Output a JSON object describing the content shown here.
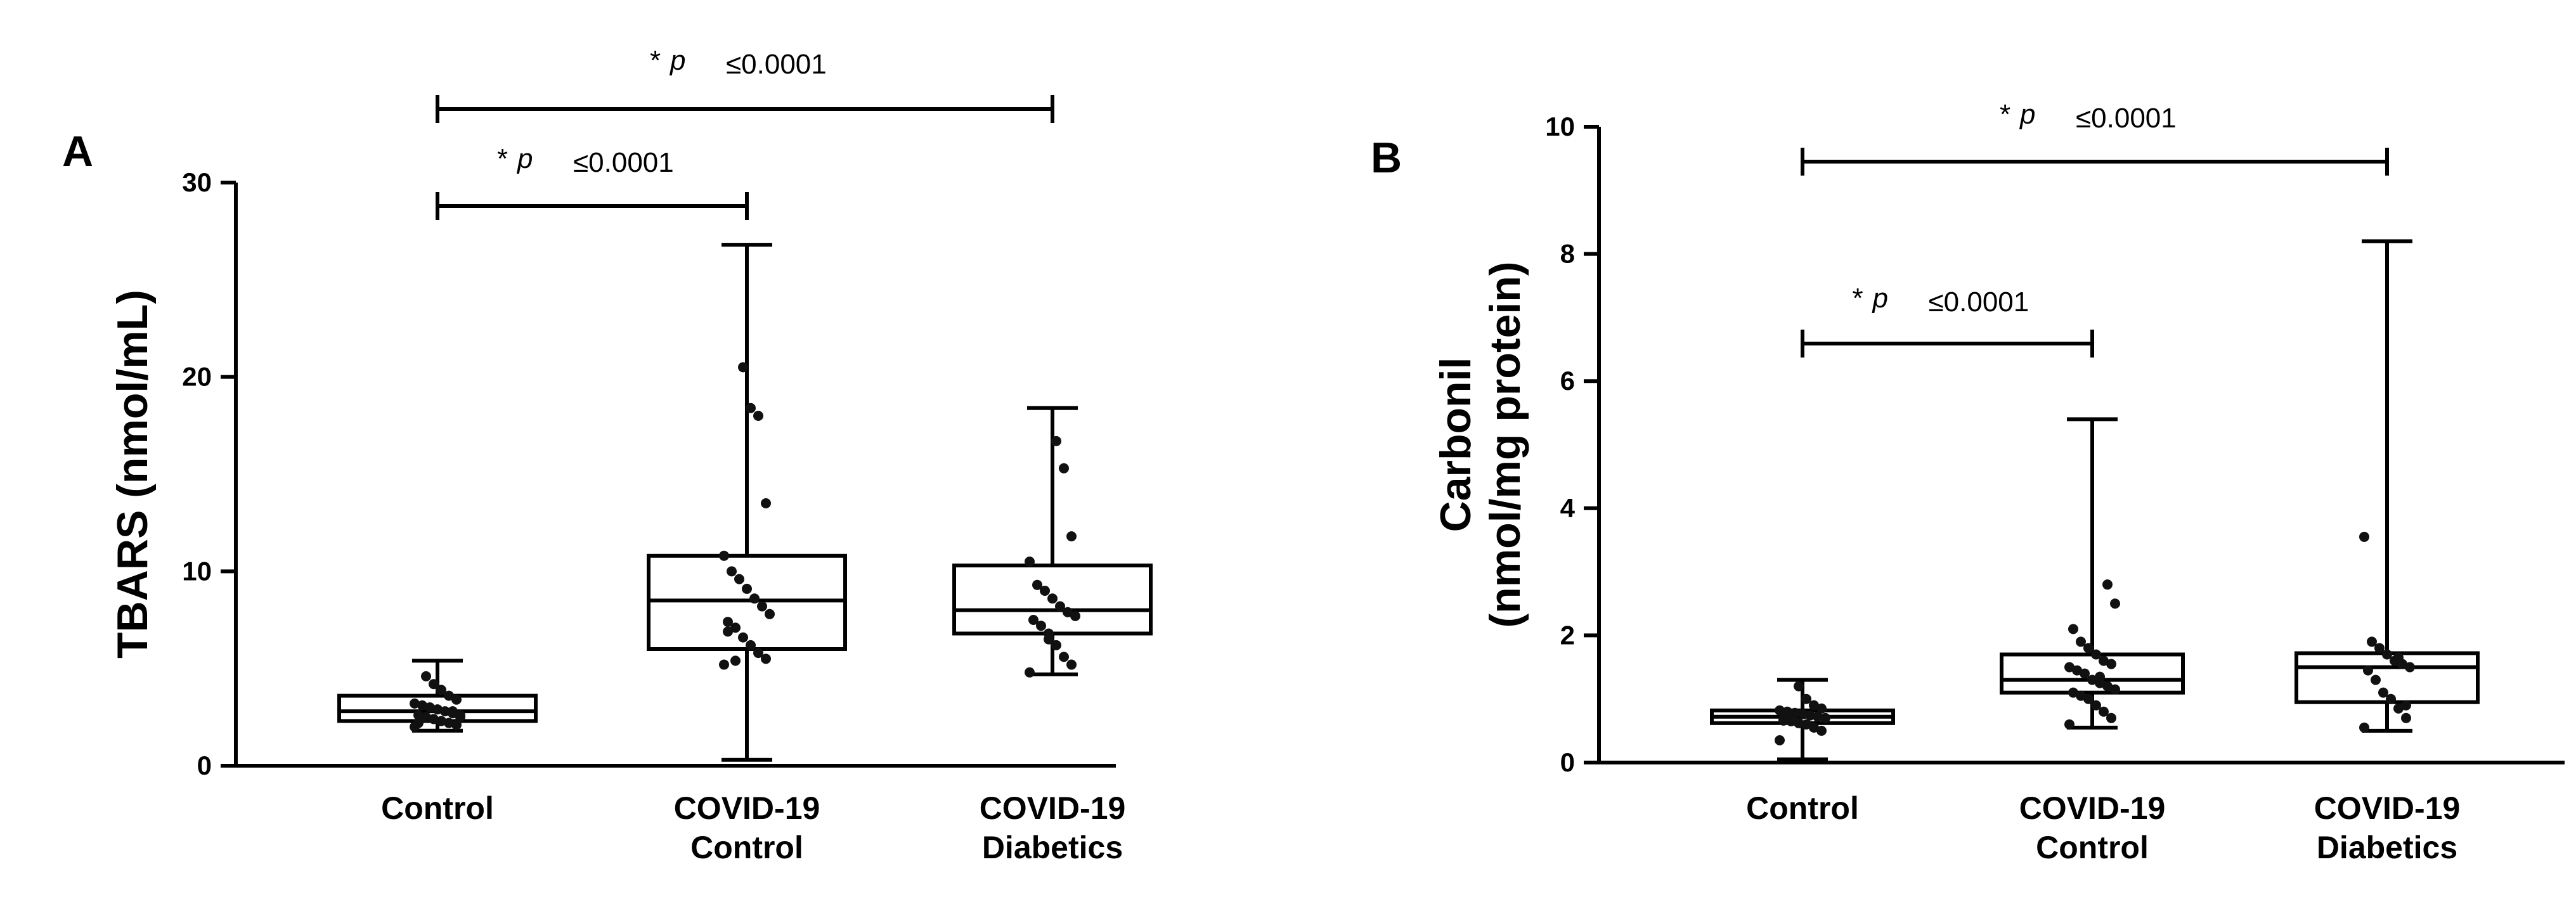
{
  "chart_data": [
    {
      "panel": "A",
      "type": "box",
      "ylabel": "TBARS (nmol/mL)",
      "ylim": [
        0,
        30
      ],
      "yticks": [
        0,
        10,
        20,
        30
      ],
      "categories": [
        "Control",
        "COVID-19\nControl",
        "COVID-19\nDiabetics"
      ],
      "boxes": [
        {
          "min": 1.8,
          "q1": 2.3,
          "median": 2.8,
          "q3": 3.6,
          "max": 5.4
        },
        {
          "min": 0.3,
          "q1": 6.0,
          "median": 8.5,
          "q3": 10.8,
          "max": 26.8
        },
        {
          "min": 4.7,
          "q1": 6.8,
          "median": 8.0,
          "q3": 10.3,
          "max": 18.4
        }
      ],
      "points": [
        [
          2.0,
          2.1,
          2.2,
          2.3,
          2.4,
          2.5,
          2.6,
          2.6,
          2.7,
          2.8,
          2.9,
          3.0,
          3.1,
          3.2,
          3.4,
          3.6,
          3.9,
          4.2,
          4.6,
          2.2,
          2.5,
          2.8
        ],
        [
          5.2,
          5.5,
          5.8,
          6.2,
          6.6,
          7.1,
          7.4,
          7.8,
          8.2,
          8.6,
          9.1,
          9.6,
          10.0,
          10.8,
          13.5,
          18.0,
          18.4,
          20.5,
          5.4,
          6.9
        ],
        [
          4.8,
          5.2,
          5.6,
          6.2,
          6.8,
          7.2,
          7.5,
          7.7,
          7.9,
          8.2,
          8.6,
          9.0,
          9.3,
          10.5,
          11.8,
          15.3,
          16.7,
          6.5
        ]
      ],
      "significance": [
        {
          "from": 0,
          "to": 1,
          "star": "*",
          "p": "p",
          "text": "≤0.0001"
        },
        {
          "from": 0,
          "to": 2,
          "star": "*",
          "p": "p",
          "text": "≤0.0001"
        }
      ]
    },
    {
      "panel": "B",
      "type": "box",
      "ylabel": "Carbonil",
      "ylabel2": "(nmol/mg protein)",
      "ylim": [
        0,
        10
      ],
      "yticks": [
        0,
        2,
        4,
        6,
        8,
        10
      ],
      "categories": [
        "Control",
        "COVID-19\nControl",
        "COVID-19\nDiabetics"
      ],
      "boxes": [
        {
          "min": 0.05,
          "q1": 0.62,
          "median": 0.72,
          "q3": 0.82,
          "max": 1.3
        },
        {
          "min": 0.55,
          "q1": 1.1,
          "median": 1.3,
          "q3": 1.7,
          "max": 5.4
        },
        {
          "min": 0.5,
          "q1": 0.95,
          "median": 1.5,
          "q3": 1.72,
          "max": 8.2
        }
      ],
      "points": [
        [
          0.35,
          0.5,
          0.55,
          0.6,
          0.62,
          0.65,
          0.68,
          0.7,
          0.72,
          0.74,
          0.76,
          0.78,
          0.8,
          0.82,
          0.85,
          0.9,
          1.0,
          1.2,
          0.7,
          0.66
        ],
        [
          0.6,
          0.7,
          0.8,
          0.9,
          1.0,
          1.05,
          1.1,
          1.15,
          1.2,
          1.25,
          1.3,
          1.4,
          1.45,
          1.5,
          1.55,
          1.6,
          1.7,
          1.8,
          1.9,
          2.1,
          2.5,
          2.8,
          1.35
        ],
        [
          0.55,
          0.7,
          0.85,
          1.0,
          1.1,
          1.3,
          1.45,
          1.5,
          1.55,
          1.6,
          1.7,
          1.8,
          1.9,
          3.55,
          0.9,
          1.65
        ]
      ],
      "significance": [
        {
          "from": 0,
          "to": 1,
          "star": "*",
          "p": "p",
          "text": "≤0.0001"
        },
        {
          "from": 0,
          "to": 2,
          "star": "*",
          "p": "p",
          "text": "≤0.0001"
        }
      ]
    }
  ]
}
